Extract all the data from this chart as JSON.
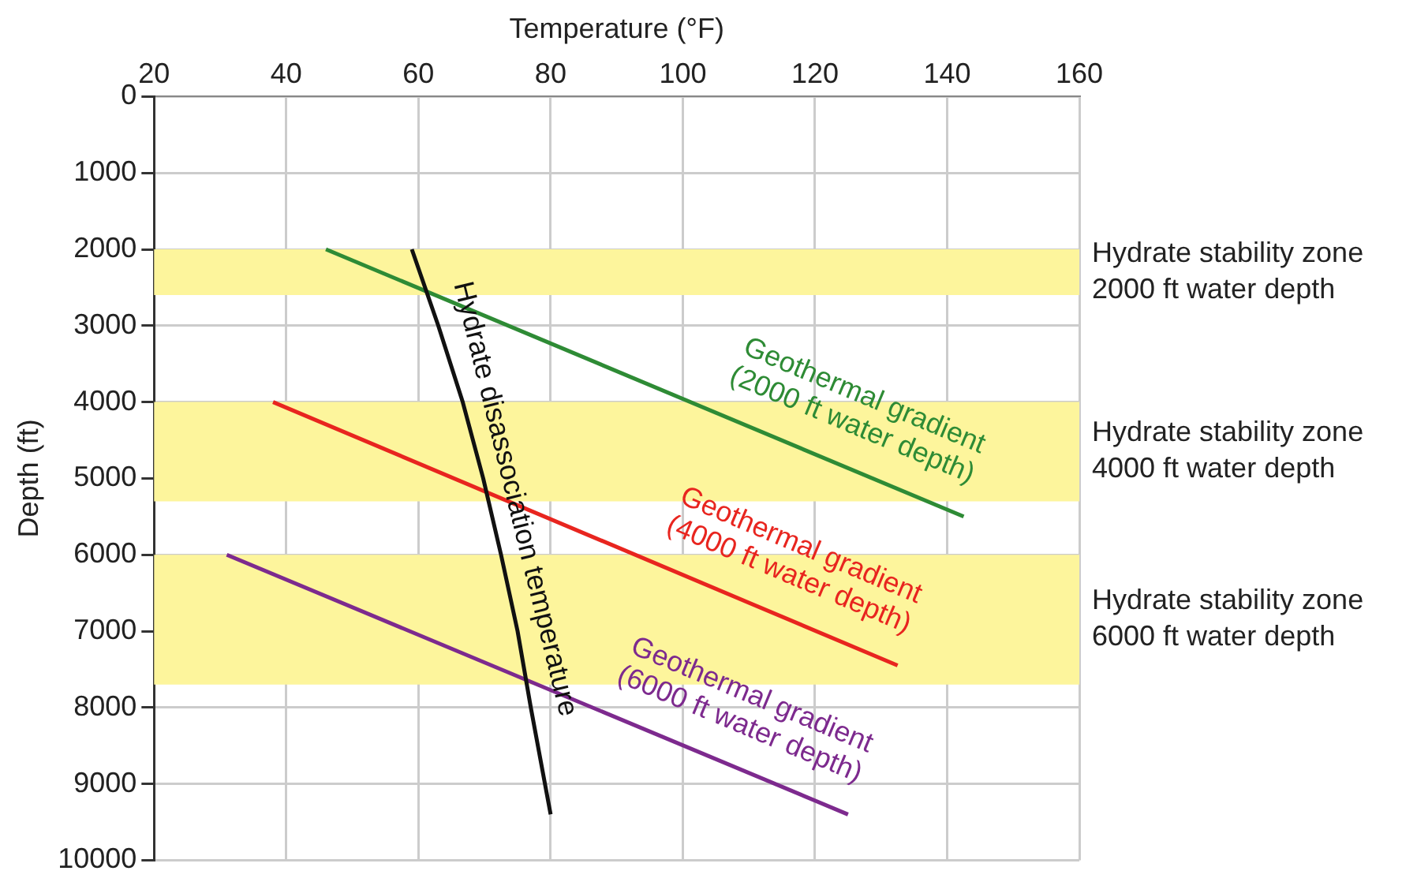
{
  "chart_data": {
    "type": "line",
    "xlabel": "Temperature (°F)",
    "ylabel": "Depth (ft)",
    "xlim": [
      20,
      160
    ],
    "xticks": [
      20,
      40,
      60,
      80,
      100,
      120,
      140,
      160
    ],
    "ylim": [
      10000,
      0
    ],
    "yticks": [
      0,
      1000,
      2000,
      3000,
      4000,
      5000,
      6000,
      7000,
      8000,
      9000,
      10000
    ],
    "grid": true,
    "legend": false,
    "marker": "none",
    "line_style": "solid",
    "bands": [
      {
        "axis": "y",
        "from": 2000,
        "to": 2600,
        "label": "Hydrate stability zone\n2000 ft water depth",
        "color": "#fdf59c"
      },
      {
        "axis": "y",
        "from": 4000,
        "to": 5300,
        "label": "Hydrate stability zone\n4000 ft water depth",
        "color": "#fdf59c"
      },
      {
        "axis": "y",
        "from": 6000,
        "to": 7700,
        "label": "Hydrate stability zone\n6000 ft water depth",
        "color": "#fdf59c"
      }
    ],
    "series": [
      {
        "name": "Hydrate disassociation temperature",
        "color": "#111111",
        "x": [
          59,
          63,
          66.7,
          69.8,
          72.5,
          75,
          77,
          80
        ],
        "values": [
          2000,
          3000,
          4000,
          5000,
          6000,
          7000,
          8000,
          9400
        ]
      },
      {
        "name": "Geothermal gradient\n(2000 ft water depth)",
        "color": "#2e8b35",
        "x": [
          46,
          142.5
        ],
        "values": [
          2000,
          5500
        ]
      },
      {
        "name": "Geothermal gradient\n(4000 ft water depth)",
        "color": "#e8251f",
        "x": [
          38,
          132.5
        ],
        "values": [
          4000,
          7450
        ]
      },
      {
        "name": "Geothermal gradient\n(6000 ft water depth)",
        "color": "#7d2a8e",
        "x": [
          31,
          125
        ],
        "values": [
          6000,
          9400
        ]
      }
    ]
  }
}
